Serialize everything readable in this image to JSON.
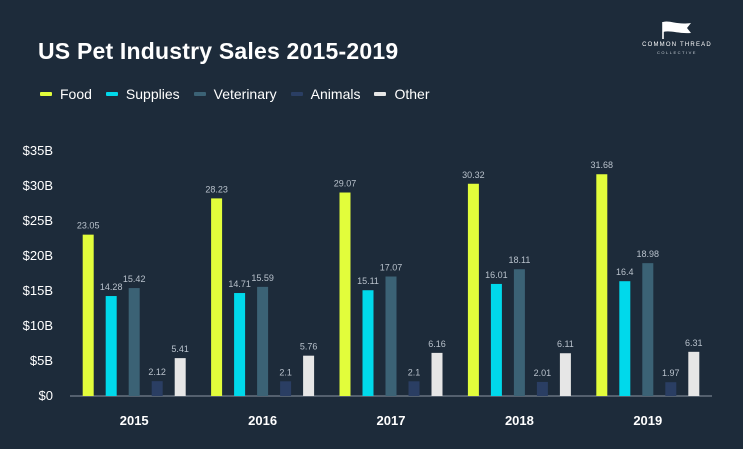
{
  "colors": {
    "Food": "#e2fd3b",
    "Supplies": "#00d9eb",
    "Veterinary": "#3b6275",
    "Animals": "#2a3e63",
    "Other": "#e6e6e6"
  },
  "logo": {
    "line1": "COMMON THREAD",
    "line2": "COLLECTIVE"
  },
  "chart_data": {
    "type": "bar",
    "title": "US Pet Industry Sales 2015-2019",
    "xlabel": "",
    "ylabel": "",
    "categories": [
      "2015",
      "2016",
      "2017",
      "2018",
      "2019"
    ],
    "series": [
      {
        "name": "Food",
        "values": [
          23.05,
          28.23,
          29.07,
          30.32,
          31.68
        ]
      },
      {
        "name": "Supplies",
        "values": [
          14.28,
          14.71,
          15.11,
          16.01,
          16.4
        ]
      },
      {
        "name": "Veterinary",
        "values": [
          15.42,
          15.59,
          17.07,
          18.11,
          18.98
        ]
      },
      {
        "name": "Animals",
        "values": [
          2.12,
          2.1,
          2.1,
          2.01,
          1.97
        ]
      },
      {
        "name": "Other",
        "values": [
          5.41,
          5.76,
          6.16,
          6.11,
          6.31
        ]
      }
    ],
    "data_labels": [
      [
        "23.05",
        "28.23",
        "29.07",
        "30.32",
        "31.68"
      ],
      [
        "14.28",
        "14.71",
        "15.11",
        "16.01",
        "16.4"
      ],
      [
        "15.42",
        "15.59",
        "17.07",
        "18.11",
        "18.98"
      ],
      [
        "2.12",
        "2.1",
        "2.1",
        "2.01",
        "1.97"
      ],
      [
        "5.41",
        "5.76",
        "6.16",
        "6.11",
        "6.31"
      ]
    ],
    "ylim": [
      0,
      35
    ],
    "yticks": [
      0,
      5,
      10,
      15,
      20,
      25,
      30,
      35
    ],
    "ytick_labels": [
      "$0",
      "$5B",
      "$10B",
      "$15B",
      "$20B",
      "$25B",
      "$30B",
      "$35B"
    ],
    "legend_position": "top-left"
  }
}
